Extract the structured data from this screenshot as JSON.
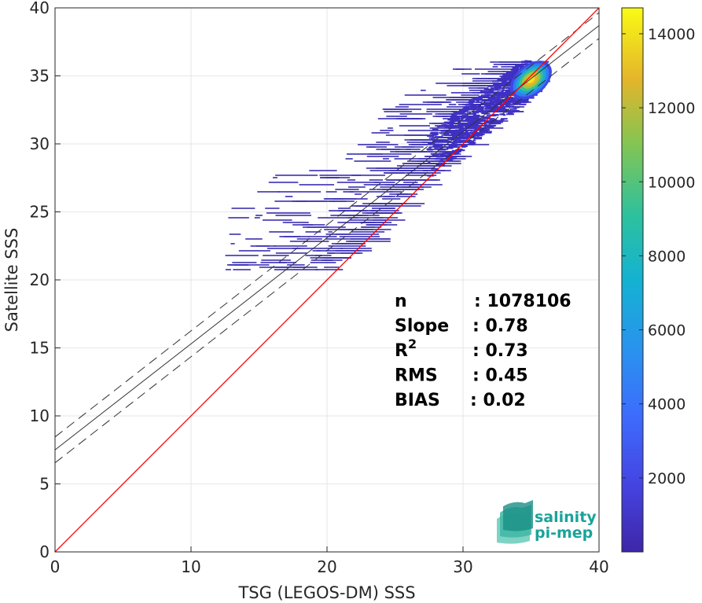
{
  "chart_data": {
    "type": "heatmap",
    "xlabel": "TSG (LEGOS-DM) SSS",
    "ylabel": "Satellite SSS",
    "xlim": [
      0,
      40
    ],
    "ylim": [
      0,
      40
    ],
    "xticks": [
      0,
      10,
      20,
      30,
      40
    ],
    "yticks": [
      0,
      5,
      10,
      15,
      20,
      25,
      30,
      35,
      40
    ],
    "grid": true,
    "colorbar": {
      "range": [
        0,
        14700
      ],
      "ticks": [
        2000,
        4000,
        6000,
        8000,
        10000,
        12000,
        14000
      ],
      "colormap": "parula"
    },
    "lines": {
      "identity": {
        "slope": 1,
        "intercept": 0,
        "color": "#ff0000"
      },
      "regression": {
        "slope": 0.78,
        "intercept": 7.5,
        "color": "#333333"
      },
      "confidence_upper": {
        "slope": 0.78,
        "intercept": 8.45,
        "style": "dashed"
      },
      "confidence_lower": {
        "slope": 0.78,
        "intercept": 6.55,
        "style": "dashed"
      }
    },
    "density_core": {
      "x": 35.0,
      "y": 34.7,
      "peak_count": 14700
    },
    "stats": [
      {
        "key": "n",
        "sep": ": ",
        "value": "1078106"
      },
      {
        "key": "Slope",
        "sep": ": ",
        "value": "0.78"
      },
      {
        "key": "R",
        "sup": "2",
        "sep": ": ",
        "value": "0.73"
      },
      {
        "key": "RMS",
        "sep": ": ",
        "value": "0.45"
      },
      {
        "key": "BIAS",
        "sep": ": ",
        "value": "0.02"
      }
    ]
  },
  "logo": {
    "line1": "salinity",
    "line2": "pi-mep"
  }
}
